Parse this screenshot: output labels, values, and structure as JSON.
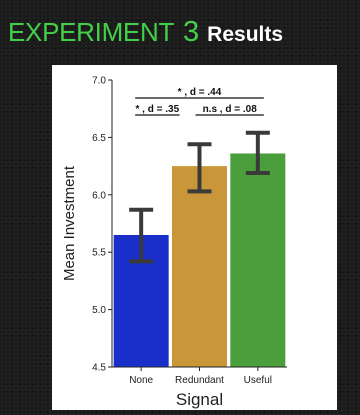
{
  "title": {
    "word": "EXPERIMENT",
    "number": "3",
    "suffix": "Results",
    "color_word": "#43d049",
    "color_suffix": "#ffffff"
  },
  "chart_data": {
    "type": "bar",
    "title": "",
    "xlabel": "Signal",
    "ylabel": "Mean Investment",
    "categories": [
      "None",
      "Redundant",
      "Useful"
    ],
    "values": [
      5.65,
      6.25,
      6.36
    ],
    "error_low": [
      5.42,
      6.03,
      6.19
    ],
    "error_high": [
      5.87,
      6.44,
      6.54
    ],
    "colors": [
      "#1a2ec9",
      "#c9973a",
      "#4a9e3c"
    ],
    "ylim": [
      4.5,
      7.0
    ],
    "yticks": [
      "4.5",
      "5.0",
      "5.5",
      "6.0",
      "6.5",
      "7.0"
    ],
    "grid": false,
    "annotations": [
      {
        "label": "* , d = .44",
        "from": 0,
        "to": 2,
        "level": 2
      },
      {
        "label": "* , d = .35",
        "from": 0,
        "to": 1,
        "level": 1
      },
      {
        "label": "n.s , d = .08",
        "from": 1,
        "to": 2,
        "level": 1
      }
    ]
  }
}
